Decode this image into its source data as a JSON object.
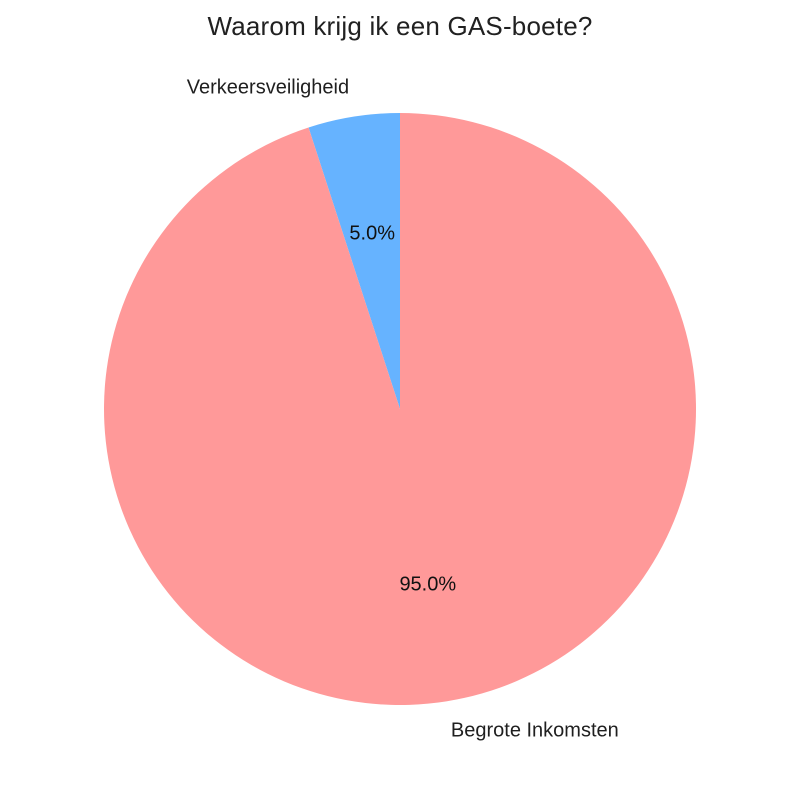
{
  "chart_data": {
    "type": "pie",
    "title": "Waarom krijg ik een GAS-boete?",
    "labels": [
      "Verkeersveiligheid",
      "Begrote Inkomsten"
    ],
    "values": [
      5.0,
      95.0
    ],
    "pct_labels": [
      "5.0%",
      "95.0%"
    ],
    "colors": [
      "#66b3ff",
      "#ff9999"
    ],
    "start_angle_deg": 90,
    "direction": "counterclockwise",
    "label_radius_factor": 1.1,
    "pct_radius_factor": 0.6,
    "legend_position": "none",
    "background": "#ffffff",
    "text_color": "#1f1f1f"
  }
}
